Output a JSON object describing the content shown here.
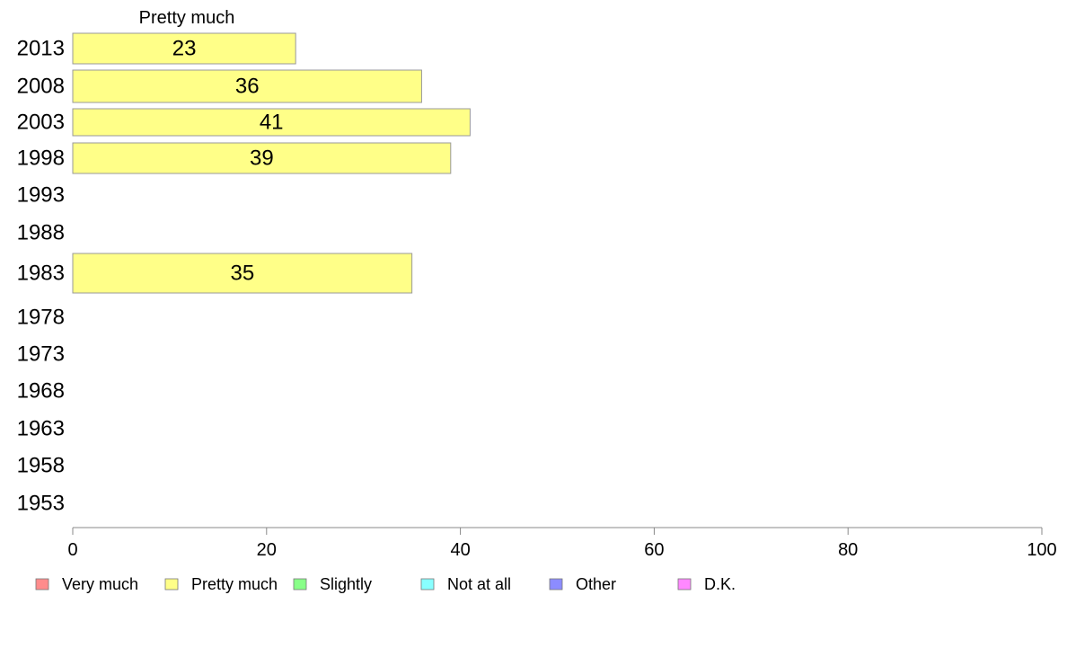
{
  "chart_data": {
    "type": "bar",
    "orientation": "horizontal",
    "series_label": "Pretty much",
    "categories": [
      "2013",
      "2008",
      "2003",
      "1998",
      "1993",
      "1988",
      "1983",
      "1978",
      "1973",
      "1968",
      "1963",
      "1958",
      "1953"
    ],
    "series": [
      {
        "name": "Pretty much",
        "values": [
          23,
          36,
          41,
          39,
          null,
          null,
          35,
          null,
          null,
          null,
          null,
          null,
          null
        ]
      }
    ],
    "value_labels": [
      "23",
      "36",
      "41",
      "39",
      "",
      "",
      "35",
      "",
      "",
      "",
      "",
      "",
      ""
    ],
    "xlim": [
      0,
      100
    ],
    "xticks": [
      0,
      20,
      40,
      60,
      80,
      100
    ],
    "xtick_labels": [
      "0",
      "20",
      "40",
      "60",
      "80",
      "100"
    ],
    "grid": false,
    "legend_position": "bottom",
    "legend": [
      {
        "label": "Very much",
        "color": "#ff8c8c"
      },
      {
        "label": "Pretty much",
        "color": "#ffff88"
      },
      {
        "label": "Slightly",
        "color": "#88ff88"
      },
      {
        "label": "Not at all",
        "color": "#88ffff"
      },
      {
        "label": "Other",
        "color": "#8c8cff"
      },
      {
        "label": "D.K.",
        "color": "#ff88ff"
      }
    ],
    "bar_color": "#ffff88",
    "bar_stroke": "#999999"
  }
}
